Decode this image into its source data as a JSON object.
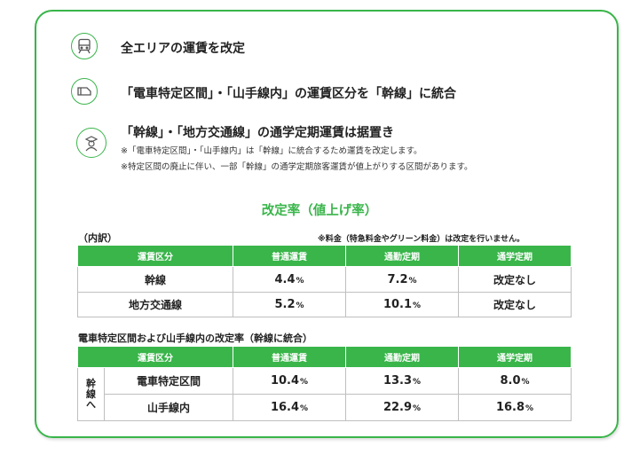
{
  "headlines": [
    "全エリアの運賃を改定",
    "「電車特定区間」・「山手線内」の運賃区分を「幹線」に統合",
    "「幹線」・「地方交通線」の通学定期運賃は据置き"
  ],
  "notes": [
    "※「電車特定区間」・「山手線内」は「幹線」に統合するため運賃を改定します。",
    "※特定区間の廃止に伴い、一部「幹線」の通学定期旅客運賃が値上がりする区間があります。"
  ],
  "icons": [
    "train-icon",
    "ticket-icon",
    "student-icon"
  ],
  "section_title": "改定率（値上げ率）",
  "breakdown_label": "（内訳）",
  "fee_note": "※料金（特急料金やグリーン料金）は改定を行いません。",
  "table1": {
    "headers": [
      "運賃区分",
      "普通運賃",
      "通勤定期",
      "通学定期"
    ],
    "rows": [
      {
        "label": "幹線",
        "normal": "4.4",
        "commute": "7.2",
        "student": "改定なし"
      },
      {
        "label": "地方交通線",
        "normal": "5.2",
        "commute": "10.1",
        "student": "改定なし"
      }
    ]
  },
  "table2_title": "電車特定区間および山手線内の改定率（幹線に統合）",
  "table2": {
    "headers": [
      "運賃区分",
      "普通運賃",
      "通勤定期",
      "通学定期"
    ],
    "group_label": [
      "幹",
      "線",
      "へ"
    ],
    "rows": [
      {
        "label": "電車特定区間",
        "normal": "10.4",
        "commute": "13.3",
        "student": "8.0"
      },
      {
        "label": "山手線内",
        "normal": "16.4",
        "commute": "22.9",
        "student": "16.8"
      }
    ]
  },
  "pct_symbol": "%",
  "colors": {
    "accent": "#39b54a"
  }
}
